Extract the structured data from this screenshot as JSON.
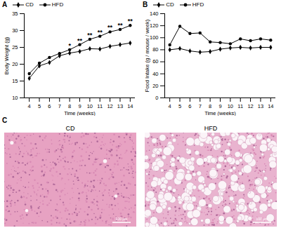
{
  "chart_data": [
    {
      "type": "line",
      "title": "A",
      "x_label": "Time (weeks)",
      "y_label": "Body Weight (g)",
      "x": [
        4,
        5,
        6,
        7,
        8,
        9,
        10,
        11,
        12,
        13,
        14
      ],
      "series": [
        {
          "name": "CD",
          "color": "#000000",
          "marker": "diamond",
          "values": [
            15.8,
            19.5,
            20.5,
            22.5,
            23.3,
            23.8,
            24.6,
            24.5,
            25.3,
            25.8,
            26.3
          ]
        },
        {
          "name": "HFD",
          "color": "#000000",
          "marker": "circle",
          "values": [
            17.2,
            20.3,
            22.0,
            23.2,
            24.3,
            25.8,
            27.4,
            28.3,
            29.6,
            30.3,
            31.5
          ]
        }
      ],
      "xlim": [
        3.5,
        14.5
      ],
      "xticks": [
        4,
        5,
        6,
        7,
        8,
        9,
        10,
        11,
        12,
        13,
        14
      ],
      "ylim": [
        10,
        35
      ],
      "yticks": [
        10,
        15,
        20,
        25,
        30,
        35
      ],
      "legend": "upper left",
      "annotations": [
        {
          "x": 8,
          "text": "*"
        },
        {
          "x": 9,
          "text": "**"
        },
        {
          "x": 10,
          "text": "**"
        },
        {
          "x": 11,
          "text": "**"
        },
        {
          "x": 12,
          "text": "**"
        },
        {
          "x": 13,
          "text": "**"
        },
        {
          "x": 14,
          "text": "**"
        }
      ]
    },
    {
      "type": "line",
      "title": "B",
      "x_label": "Time (weeks)",
      "y_label": "Food Intake (g / mouse / week)",
      "x": [
        4,
        5,
        6,
        7,
        8,
        9,
        10,
        11,
        12,
        13,
        14
      ],
      "series": [
        {
          "name": "CD",
          "color": "#000000",
          "marker": "diamond",
          "values": [
            80,
            82,
            78,
            76,
            77,
            81,
            83,
            84,
            83,
            84,
            84
          ]
        },
        {
          "name": "HFD",
          "color": "#000000",
          "marker": "circle",
          "values": [
            88,
            119,
            107,
            108,
            93,
            92,
            90,
            98,
            95,
            98,
            96
          ]
        }
      ],
      "xlim": [
        3.5,
        14.5
      ],
      "xticks": [
        4,
        5,
        6,
        7,
        8,
        9,
        10,
        11,
        12,
        13,
        14
      ],
      "ylim": [
        0,
        140
      ],
      "yticks": [
        0,
        20,
        40,
        60,
        80,
        100,
        120,
        140
      ],
      "legend": "upper left"
    }
  ],
  "image_panel": {
    "title": "C",
    "images": [
      {
        "title": "CD",
        "scale_bar": "100 μm"
      },
      {
        "title": "HFD",
        "scale_bar": "100 μm"
      }
    ]
  }
}
